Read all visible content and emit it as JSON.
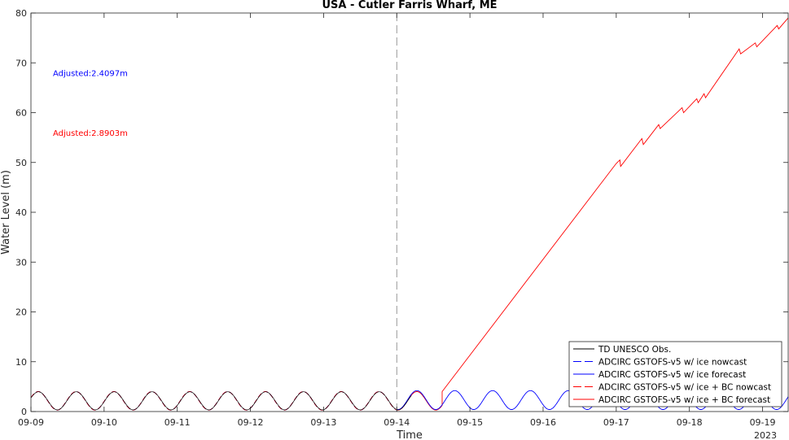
{
  "chart_data": {
    "type": "line",
    "title": "USA - Cutler Farris Wharf, ME",
    "xlabel": "Time",
    "ylabel": "Water Level (m)",
    "year_label": "2023",
    "xlim": [
      0,
      10.35
    ],
    "ylim": [
      0,
      80
    ],
    "x_ticks": [
      {
        "x": 0,
        "label": "09-09"
      },
      {
        "x": 1,
        "label": "09-10"
      },
      {
        "x": 2,
        "label": "09-11"
      },
      {
        "x": 3,
        "label": "09-12"
      },
      {
        "x": 4,
        "label": "09-13"
      },
      {
        "x": 5,
        "label": "09-14"
      },
      {
        "x": 6,
        "label": "09-15"
      },
      {
        "x": 7,
        "label": "09-16"
      },
      {
        "x": 8,
        "label": "09-17"
      },
      {
        "x": 9,
        "label": "09-18"
      },
      {
        "x": 10,
        "label": "09-19"
      }
    ],
    "y_ticks": [
      0,
      10,
      20,
      30,
      40,
      50,
      60,
      70,
      80
    ],
    "nowcast_divider_x": 5.0,
    "annotations": [
      {
        "text": "Adjusted:2.4097m",
        "color": "#0000ff",
        "y": 68
      },
      {
        "text": "Adjusted:2.8903m",
        "color": "#ff0000",
        "y": 56
      }
    ],
    "tide": {
      "mean": 2.15,
      "amplitude": 1.85,
      "period_days": 0.5175,
      "phase": 0.1,
      "forecast_amplitude": 1.9,
      "forecast_mean": 2.3
    },
    "series": [
      {
        "name": "TD UNESCO Obs.",
        "color": "#000000",
        "dash": "solid",
        "x_range": [
          0,
          5.2
        ]
      },
      {
        "name": "ADCIRC GSTOFS-v5 w/ ice nowcast",
        "color": "#0000ff",
        "dash": "dashed",
        "x_range": [
          0,
          5.0
        ]
      },
      {
        "name": "ADCIRC GSTOFS-v5 w/ ice forecast",
        "color": "#0000ff",
        "dash": "solid",
        "x_range": [
          5.0,
          10.35
        ]
      },
      {
        "name": "ADCIRC GSTOFS-v5 w/ ice + BC nowcast",
        "color": "#ff0000",
        "dash": "dashed",
        "x_range": [
          0,
          5.0
        ]
      },
      {
        "name": "ADCIRC GSTOFS-v5 w/ ice + BC forecast",
        "color": "#ff0000",
        "dash": "solid",
        "x_range": [
          5.0,
          10.35
        ]
      }
    ],
    "bc_forecast_ramp": [
      {
        "x": 5.62,
        "y": 4.0
      },
      {
        "x": 8.0,
        "y": 49.8
      },
      {
        "x": 8.05,
        "y": 50.5
      },
      {
        "x": 8.06,
        "y": 49.2
      },
      {
        "x": 8.35,
        "y": 54.8
      },
      {
        "x": 8.37,
        "y": 53.6
      },
      {
        "x": 8.58,
        "y": 57.6
      },
      {
        "x": 8.6,
        "y": 56.8
      },
      {
        "x": 8.9,
        "y": 61.0
      },
      {
        "x": 8.92,
        "y": 60.0
      },
      {
        "x": 9.1,
        "y": 62.8
      },
      {
        "x": 9.12,
        "y": 62.0
      },
      {
        "x": 9.2,
        "y": 63.8
      },
      {
        "x": 9.22,
        "y": 63.0
      },
      {
        "x": 9.68,
        "y": 72.8
      },
      {
        "x": 9.7,
        "y": 71.8
      },
      {
        "x": 9.9,
        "y": 74.0
      },
      {
        "x": 9.92,
        "y": 73.2
      },
      {
        "x": 10.2,
        "y": 77.5
      },
      {
        "x": 10.22,
        "y": 76.8
      },
      {
        "x": 10.35,
        "y": 79.0
      }
    ],
    "legend_position": "bottom-right",
    "grid": false
  }
}
